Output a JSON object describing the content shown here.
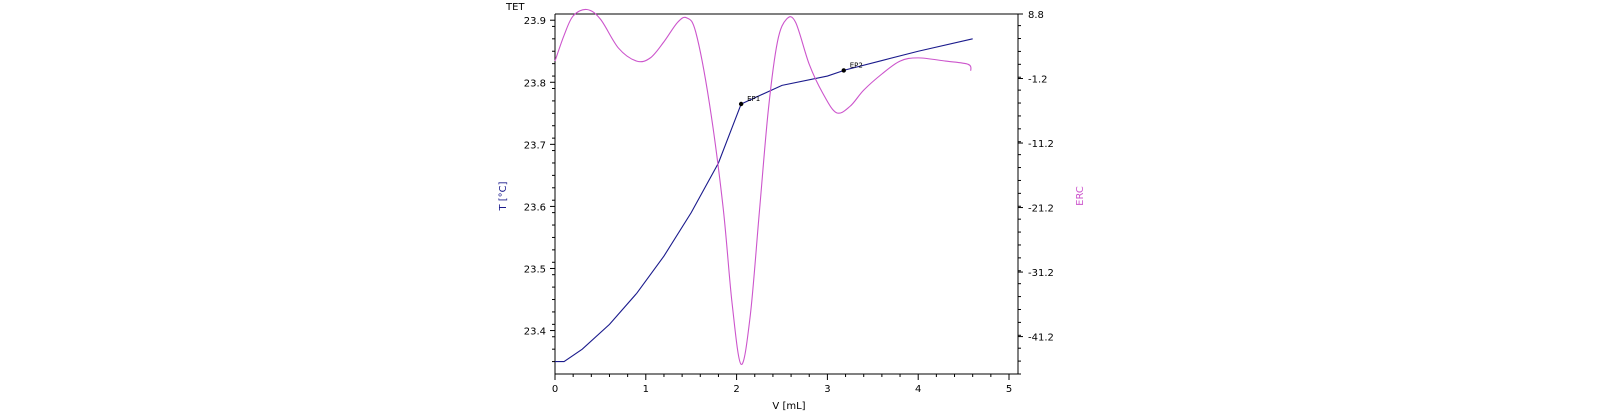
{
  "chart_data": {
    "type": "line",
    "title": "TET",
    "xlabel": "V [mL]",
    "ylabel_left": "T [°C]",
    "ylabel_right": "ERC",
    "xlim": [
      0,
      5
    ],
    "ylim_left": [
      23.33,
      23.91
    ],
    "ylim_right": [
      -47.0,
      8.8
    ],
    "x_ticks": [
      0,
      1,
      2,
      3,
      4,
      5
    ],
    "y_left_ticks": [
      23.4,
      23.5,
      23.6,
      23.7,
      23.8,
      23.9
    ],
    "y_right_ticks": [
      -41.2,
      -31.2,
      -21.2,
      -11.2,
      -1.2,
      8.8
    ],
    "grid": false,
    "colors": {
      "temperature": "#1a1a8c",
      "erc": "#cc55cc",
      "axis": "#000000",
      "endpoint": "#000000"
    },
    "series": [
      {
        "axis": "left",
        "color": "#1a1a8c",
        "points": [
          [
            0.0,
            23.35
          ],
          [
            0.1,
            23.35
          ],
          [
            0.3,
            23.37
          ],
          [
            0.6,
            23.41
          ],
          [
            0.9,
            23.46
          ],
          [
            1.2,
            23.52
          ],
          [
            1.5,
            23.59
          ],
          [
            1.8,
            23.67
          ],
          [
            2.05,
            23.765
          ],
          [
            2.5,
            23.795
          ],
          [
            3.0,
            23.81
          ],
          [
            3.2,
            23.82
          ],
          [
            3.6,
            23.835
          ],
          [
            4.0,
            23.85
          ],
          [
            4.6,
            23.87
          ]
        ]
      },
      {
        "axis": "right",
        "color": "#cc55cc",
        "points": [
          [
            0.0,
            1.5
          ],
          [
            0.1,
            5.5
          ],
          [
            0.2,
            8.5
          ],
          [
            0.35,
            9.5
          ],
          [
            0.5,
            8.0
          ],
          [
            0.7,
            3.5
          ],
          [
            0.9,
            1.5
          ],
          [
            1.05,
            2.0
          ],
          [
            1.2,
            4.5
          ],
          [
            1.35,
            7.5
          ],
          [
            1.45,
            8.2
          ],
          [
            1.55,
            6.0
          ],
          [
            1.7,
            -5.0
          ],
          [
            1.85,
            -21.0
          ],
          [
            1.95,
            -36.0
          ],
          [
            2.05,
            -45.5
          ],
          [
            2.15,
            -38.0
          ],
          [
            2.25,
            -22.0
          ],
          [
            2.35,
            -6.0
          ],
          [
            2.45,
            4.5
          ],
          [
            2.55,
            8.0
          ],
          [
            2.65,
            7.5
          ],
          [
            2.8,
            1.0
          ],
          [
            2.95,
            -3.5
          ],
          [
            3.1,
            -6.5
          ],
          [
            3.25,
            -5.5
          ],
          [
            3.4,
            -3.0
          ],
          [
            3.6,
            -0.5
          ],
          [
            3.8,
            1.5
          ],
          [
            4.0,
            2.0
          ],
          [
            4.3,
            1.5
          ],
          [
            4.55,
            1.0
          ],
          [
            4.58,
            0.0
          ]
        ]
      }
    ],
    "endpoints": [
      {
        "label": "EP1",
        "x": 2.05,
        "y": 23.765
      },
      {
        "label": "EP2",
        "x": 3.18,
        "y": 23.819
      }
    ]
  }
}
